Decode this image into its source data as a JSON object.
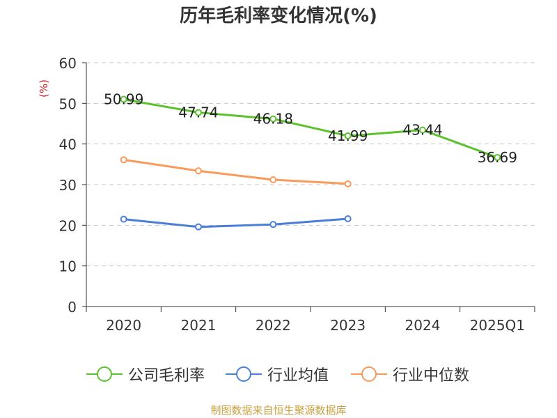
{
  "chart_data": {
    "type": "line",
    "title": "历年毛利率变化情况(%)",
    "ylabel": "(%)",
    "xlabel": "",
    "ylim": [
      0,
      60
    ],
    "yticks": [
      0,
      10,
      20,
      30,
      40,
      50,
      60
    ],
    "grid": true,
    "legend_position": "bottom",
    "categories": [
      "2020",
      "2021",
      "2022",
      "2023",
      "2024",
      "2025Q1"
    ],
    "series": [
      {
        "name": "公司毛利率",
        "color": "#5cc12e",
        "values": [
          50.99,
          47.74,
          46.18,
          41.99,
          43.44,
          36.69
        ],
        "labels": [
          "50.99",
          "47.74",
          "46.18",
          "41.99",
          "43.44",
          "36.69"
        ]
      },
      {
        "name": "行业均值",
        "color": "#4a7fd8",
        "values": [
          21.5,
          19.6,
          20.2,
          21.6,
          null,
          null
        ]
      },
      {
        "name": "行业中位数",
        "color": "#f79a5a",
        "values": [
          36.1,
          33.4,
          31.2,
          30.2,
          null,
          null
        ]
      }
    ]
  },
  "footer": "制图数据来自恒生聚源数据库"
}
